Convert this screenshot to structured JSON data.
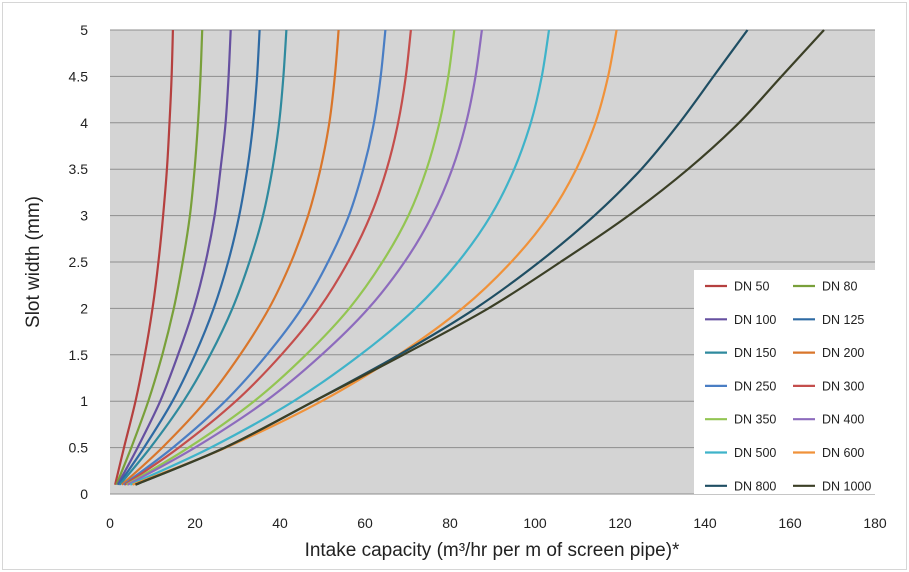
{
  "chart_data": {
    "type": "line",
    "title": "",
    "xlabel": "Intake capacity (m³/hr per m of screen pipe)*",
    "ylabel": "Slot width (mm)",
    "xlim": [
      0,
      180
    ],
    "ylim": [
      0,
      5
    ],
    "x_ticks": [
      "0",
      "20",
      "40",
      "60",
      "80",
      "100",
      "120",
      "140",
      "160",
      "180"
    ],
    "y_ticks": [
      "0",
      "0.5",
      "1",
      "1.5",
      "2",
      "2.5",
      "3",
      "3.5",
      "4",
      "4.5",
      "5"
    ],
    "grid": "horizontal",
    "legend_position": "bottom-right",
    "plot_background": "#d4d4d4",
    "series": [
      {
        "name": "DN 50",
        "color": "#b5403f",
        "x": [
          1.2,
          3.3,
          6.0,
          8.2,
          10.0,
          11.4,
          12.5,
          13.4,
          14.0,
          14.5,
          14.8
        ],
        "y": [
          0.1,
          0.5,
          1.0,
          1.5,
          2.0,
          2.5,
          3.0,
          3.5,
          4.0,
          4.5,
          5.0
        ]
      },
      {
        "name": "DN 80",
        "color": "#79a03a",
        "x": [
          1.5,
          5.0,
          9.0,
          12.3,
          15.0,
          17.1,
          18.8,
          19.9,
          20.7,
          21.3,
          21.7
        ],
        "y": [
          0.1,
          0.5,
          1.0,
          1.5,
          2.0,
          2.5,
          3.0,
          3.5,
          4.0,
          4.5,
          5.0
        ]
      },
      {
        "name": "DN 100",
        "color": "#6650a0",
        "x": [
          1.8,
          6.5,
          11.8,
          16.0,
          19.7,
          22.5,
          24.6,
          26.0,
          27.2,
          27.9,
          28.4
        ],
        "y": [
          0.1,
          0.5,
          1.0,
          1.5,
          2.0,
          2.5,
          3.0,
          3.5,
          4.0,
          4.5,
          5.0
        ]
      },
      {
        "name": "DN 125",
        "color": "#2e6aa3",
        "x": [
          2.0,
          8.0,
          14.7,
          20.0,
          24.4,
          27.8,
          30.4,
          32.3,
          33.7,
          34.6,
          35.2
        ],
        "y": [
          0.1,
          0.5,
          1.0,
          1.5,
          2.0,
          2.5,
          3.0,
          3.5,
          4.0,
          4.5,
          5.0
        ]
      },
      {
        "name": "DN 150",
        "color": "#2f8a9e",
        "x": [
          2.3,
          9.5,
          17.3,
          23.6,
          28.8,
          32.8,
          36.0,
          38.2,
          39.8,
          40.8,
          41.5
        ],
        "y": [
          0.1,
          0.5,
          1.0,
          1.5,
          2.0,
          2.5,
          3.0,
          3.5,
          4.0,
          4.5,
          5.0
        ]
      },
      {
        "name": "DN 200",
        "color": "#d9762b",
        "x": [
          2.8,
          12.3,
          22.5,
          30.6,
          37.4,
          42.6,
          46.6,
          49.5,
          51.6,
          52.9,
          53.8
        ],
        "y": [
          0.1,
          0.5,
          1.0,
          1.5,
          2.0,
          2.5,
          3.0,
          3.5,
          4.0,
          4.5,
          5.0
        ]
      },
      {
        "name": "DN 250",
        "color": "#4a7ec4",
        "x": [
          3.2,
          14.8,
          27.1,
          36.9,
          45.1,
          51.3,
          56.2,
          59.6,
          62.1,
          63.7,
          64.8
        ],
        "y": [
          0.1,
          0.5,
          1.0,
          1.5,
          2.0,
          2.5,
          3.0,
          3.5,
          4.0,
          4.5,
          5.0
        ]
      },
      {
        "name": "DN 300",
        "color": "#c44e4c",
        "x": [
          3.5,
          16.2,
          29.6,
          40.3,
          49.2,
          56.0,
          61.3,
          65.1,
          67.8,
          69.6,
          70.8
        ],
        "y": [
          0.1,
          0.5,
          1.0,
          1.5,
          2.0,
          2.5,
          3.0,
          3.5,
          4.0,
          4.5,
          5.0
        ]
      },
      {
        "name": "DN 350",
        "color": "#93c552",
        "x": [
          3.9,
          18.5,
          33.9,
          46.1,
          56.3,
          64.1,
          70.2,
          74.5,
          77.5,
          79.6,
          81.0
        ],
        "y": [
          0.1,
          0.5,
          1.0,
          1.5,
          2.0,
          2.5,
          3.0,
          3.5,
          4.0,
          4.5,
          5.0
        ]
      },
      {
        "name": "DN 400",
        "color": "#8d6bbd",
        "x": [
          4.2,
          20.0,
          36.6,
          49.8,
          60.8,
          69.3,
          75.8,
          80.5,
          83.8,
          86.0,
          87.5
        ],
        "y": [
          0.1,
          0.5,
          1.0,
          1.5,
          2.0,
          2.5,
          3.0,
          3.5,
          4.0,
          4.5,
          5.0
        ]
      },
      {
        "name": "DN 500",
        "color": "#3fb3c9",
        "x": [
          4.8,
          23.7,
          43.2,
          58.9,
          71.9,
          81.9,
          89.6,
          95.1,
          99.0,
          101.6,
          103.3
        ],
        "y": [
          0.1,
          0.5,
          1.0,
          1.5,
          2.0,
          2.5,
          3.0,
          3.5,
          4.0,
          4.5,
          5.0
        ]
      },
      {
        "name": "DN 600",
        "color": "#f0923a",
        "x": [
          5.3,
          27.3,
          49.8,
          67.9,
          82.9,
          94.4,
          103.3,
          109.7,
          114.2,
          117.2,
          119.2
        ],
        "y": [
          0.1,
          0.5,
          1.0,
          1.5,
          2.0,
          2.5,
          3.0,
          3.5,
          4.0,
          4.5,
          5.0
        ]
      },
      {
        "name": "DN 800",
        "color": "#1f4e63",
        "x": [
          6.0,
          27.0,
          48.0,
          68.0,
          86.0,
          101.0,
          114.0,
          125.0,
          134.0,
          142.0,
          150.0
        ],
        "y": [
          0.1,
          0.5,
          1.0,
          1.5,
          2.0,
          2.5,
          3.0,
          3.5,
          4.0,
          4.5,
          5.0
        ]
      },
      {
        "name": "DN 1000",
        "color": "#3b3f26",
        "x": [
          6.0,
          27.0,
          48.0,
          69.0,
          89.0,
          106.0,
          122.0,
          136.0,
          148.0,
          158.0,
          168.0
        ],
        "y": [
          0.1,
          0.5,
          1.0,
          1.5,
          2.0,
          2.5,
          3.0,
          3.5,
          4.0,
          4.5,
          5.0
        ]
      }
    ]
  }
}
